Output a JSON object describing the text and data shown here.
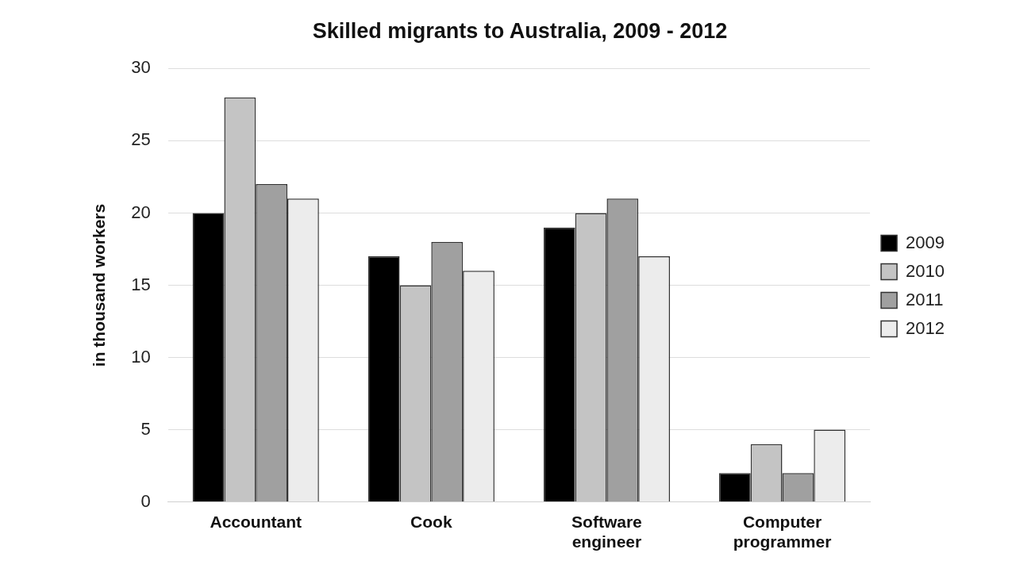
{
  "chart_data": {
    "type": "bar",
    "title": "Skilled migrants to Australia, 2009 - 2012",
    "ylabel": "in thousand workers",
    "categories": [
      "Accountant",
      "Cook",
      "Software engineer",
      "Computer programmer"
    ],
    "series": [
      {
        "name": "2009",
        "color": "#000000",
        "values": [
          20,
          17,
          19,
          2
        ]
      },
      {
        "name": "2010",
        "color": "#c4c4c4",
        "values": [
          28,
          15,
          20,
          4
        ]
      },
      {
        "name": "2011",
        "color": "#a0a0a0",
        "values": [
          22,
          18,
          21,
          2
        ]
      },
      {
        "name": "2012",
        "color": "#ececec",
        "values": [
          21,
          16,
          17,
          5
        ]
      }
    ],
    "ylim": [
      0,
      30
    ],
    "yticks": [
      0,
      5,
      10,
      15,
      20,
      25,
      30
    ],
    "grid": "y",
    "legend": "right"
  }
}
